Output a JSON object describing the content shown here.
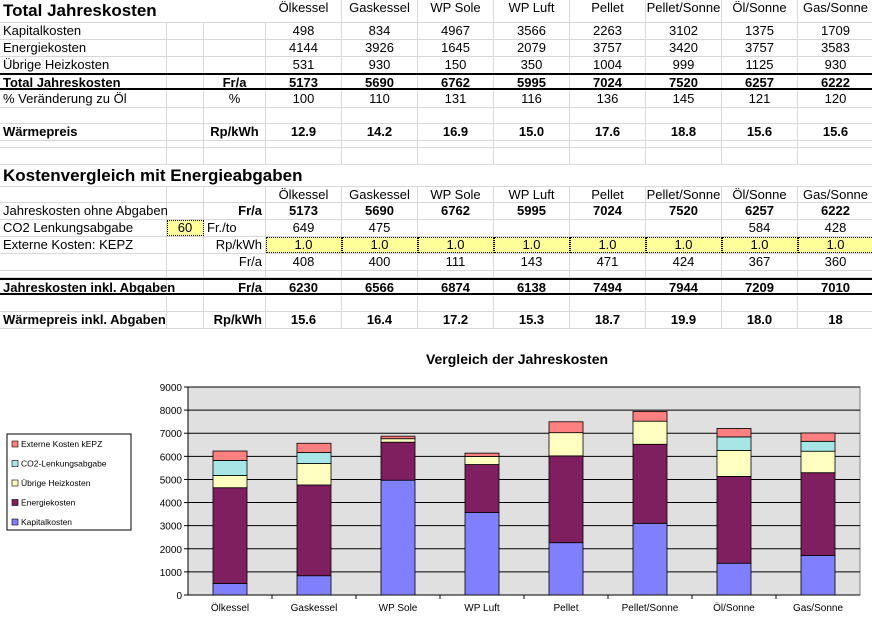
{
  "columns": [
    "Ölkessel",
    "Gaskessel",
    "WP Sole",
    "WP Luft",
    "Pellet",
    "Pellet/Sonne",
    "Öl/Sonne",
    "Gas/Sonne"
  ],
  "section1": {
    "title": "Total Jahreskosten",
    "rows": [
      {
        "label": "Kapitalkosten",
        "unit": "",
        "values": [
          "498",
          "834",
          "4967",
          "3566",
          "2263",
          "3102",
          "1375",
          "1709"
        ]
      },
      {
        "label": "Energiekosten",
        "unit": "",
        "values": [
          "4144",
          "3926",
          "1645",
          "2079",
          "3757",
          "3420",
          "3757",
          "3583"
        ]
      },
      {
        "label": "Übrige Heizkosten",
        "unit": "",
        "values": [
          "531",
          "930",
          "150",
          "350",
          "1004",
          "999",
          "1125",
          "930"
        ]
      },
      {
        "label": "Total Jahreskosten",
        "unit": "Fr/a",
        "values": [
          "5173",
          "5690",
          "6762",
          "5995",
          "7024",
          "7520",
          "6257",
          "6222"
        ]
      },
      {
        "label": "% Veränderung zu Öl",
        "unit": "%",
        "values": [
          "100",
          "110",
          "131",
          "116",
          "136",
          "145",
          "121",
          "120"
        ]
      },
      {
        "label": "Wärmepreis",
        "unit": "Rp/kWh",
        "values": [
          "12.9",
          "14.2",
          "16.9",
          "15.0",
          "17.6",
          "18.8",
          "15.6",
          "15.6"
        ]
      }
    ]
  },
  "section2": {
    "title": "Kostenvergleich mit Energieabgaben",
    "co2_rate": "60",
    "co2_rate_unit": "Fr./to",
    "rows": [
      {
        "label": "Jahreskosten ohne Abgaben",
        "unit": "Fr/a",
        "values": [
          "5173",
          "5690",
          "6762",
          "5995",
          "7024",
          "7520",
          "6257",
          "6222"
        ]
      },
      {
        "label": "CO2 Lenkungsabgabe",
        "unit": "",
        "values": [
          "649",
          "475",
          "",
          "",
          "",
          "",
          "584",
          "428"
        ]
      },
      {
        "label": "Externe Kosten: KEPZ",
        "unit": "Rp/kWh",
        "values": [
          "1.0",
          "1.0",
          "1.0",
          "1.0",
          "1.0",
          "1.0",
          "1.0",
          "1.0"
        ]
      },
      {
        "label": "",
        "unit": "Fr/a",
        "values": [
          "408",
          "400",
          "111",
          "143",
          "471",
          "424",
          "367",
          "360"
        ]
      },
      {
        "label": "Jahreskosten inkl. Abgaben",
        "unit": "Fr/a",
        "values": [
          "6230",
          "6566",
          "6874",
          "6138",
          "7494",
          "7944",
          "7209",
          "7010"
        ]
      },
      {
        "label": "Wärmepreis inkl. Abgaben",
        "unit": "Rp/kWh",
        "values": [
          "15.6",
          "16.4",
          "17.2",
          "15.3",
          "18.7",
          "19.9",
          "18.0",
          "18"
        ]
      }
    ]
  },
  "chart_data": {
    "type": "bar",
    "stacked": true,
    "title": "Vergleich der Jahreskosten",
    "categories": [
      "Ölkessel",
      "Gaskessel",
      "WP Sole",
      "WP Luft",
      "Pellet",
      "Pellet/Sonne",
      "Öl/Sonne",
      "Gas/Sonne"
    ],
    "ylim": [
      0,
      9000
    ],
    "yticks": [
      "0",
      "1000",
      "2000",
      "3000",
      "4000",
      "5000",
      "6000",
      "7000",
      "8000",
      "9000"
    ],
    "legend_position": "left",
    "series": [
      {
        "name": "Kapitalkosten",
        "color": "#8080ff",
        "values": [
          498,
          834,
          4967,
          3566,
          2263,
          3102,
          1375,
          1709
        ]
      },
      {
        "name": "Energiekosten",
        "color": "#7f1f5f",
        "values": [
          4144,
          3926,
          1645,
          2079,
          3757,
          3420,
          3757,
          3583
        ]
      },
      {
        "name": "Übrige Heizkosten",
        "color": "#ffffc0",
        "values": [
          531,
          930,
          150,
          350,
          1004,
          999,
          1125,
          930
        ]
      },
      {
        "name": "CO2-Lenkungsabgabe",
        "color": "#a6e6e6",
        "values": [
          649,
          475,
          0,
          0,
          0,
          0,
          584,
          428
        ]
      },
      {
        "name": "Externe Kosten kEPZ",
        "color": "#ff8080",
        "values": [
          408,
          400,
          111,
          143,
          471,
          424,
          367,
          360
        ]
      }
    ]
  }
}
